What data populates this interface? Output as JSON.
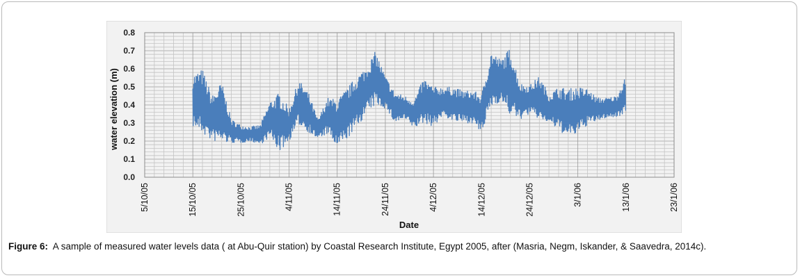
{
  "figure": {
    "label": "Figure 6:",
    "caption": "A sample of measured water levels data ( at Abu-Quir station) by Coastal Research Institute, Egypt 2005, after (Masria, Negm, Iskander, & Saavedra, 2014c)."
  },
  "chart_data": {
    "type": "line",
    "title": "",
    "xlabel": "Date",
    "ylabel": "water elevation (m)",
    "ylim": [
      0,
      0.8
    ],
    "y_ticks": [
      "0.0",
      "0.1",
      "0.2",
      "0.3",
      "0.4",
      "0.5",
      "0.6",
      "0.7",
      "0.8"
    ],
    "x_range": [
      "2005-10-05",
      "2006-01-23"
    ],
    "x_ticks": [
      "5/10/05",
      "15/10/05",
      "25/10/05",
      "4/11/05",
      "14/11/05",
      "24/11/05",
      "4/12/05",
      "14/12/05",
      "24/12/05",
      "3/1/06",
      "13/1/06",
      "23/1/06"
    ],
    "grid": true,
    "legend": "none",
    "series_color": "#4a7ebb",
    "series": [
      {
        "x": [
          "2005-10-15",
          "2005-10-17",
          "2005-10-19",
          "2005-10-21",
          "2005-10-23",
          "2005-10-25",
          "2005-10-27",
          "2005-10-29",
          "2005-10-31",
          "2005-11-02",
          "2005-11-04",
          "2005-11-06",
          "2005-11-08",
          "2005-11-10",
          "2005-11-12",
          "2005-11-14",
          "2005-11-16",
          "2005-11-18",
          "2005-11-20",
          "2005-11-22",
          "2005-11-24",
          "2005-11-26",
          "2005-11-28",
          "2005-11-30",
          "2005-12-02",
          "2005-12-04",
          "2005-12-06",
          "2005-12-08",
          "2005-12-10",
          "2005-12-12",
          "2005-12-14",
          "2005-12-16",
          "2005-12-18",
          "2005-12-20",
          "2005-12-22",
          "2005-12-24",
          "2005-12-26",
          "2005-12-28",
          "2005-12-30",
          "2006-01-01",
          "2006-01-03",
          "2006-01-05",
          "2006-01-07",
          "2006-01-09",
          "2006-01-11",
          "2006-01-13"
        ],
        "low": [
          0.28,
          0.24,
          0.2,
          0.19,
          0.19,
          0.19,
          0.2,
          0.18,
          0.22,
          0.14,
          0.2,
          0.29,
          0.25,
          0.21,
          0.24,
          0.16,
          0.21,
          0.27,
          0.35,
          0.4,
          0.38,
          0.3,
          0.32,
          0.27,
          0.3,
          0.28,
          0.34,
          0.31,
          0.3,
          0.3,
          0.24,
          0.39,
          0.42,
          0.34,
          0.32,
          0.35,
          0.32,
          0.3,
          0.26,
          0.22,
          0.24,
          0.29,
          0.31,
          0.33,
          0.33,
          0.36
        ],
        "high": [
          0.57,
          0.6,
          0.45,
          0.53,
          0.32,
          0.29,
          0.28,
          0.29,
          0.42,
          0.47,
          0.38,
          0.54,
          0.47,
          0.32,
          0.44,
          0.43,
          0.49,
          0.56,
          0.61,
          0.7,
          0.56,
          0.47,
          0.45,
          0.43,
          0.55,
          0.5,
          0.5,
          0.5,
          0.48,
          0.48,
          0.46,
          0.7,
          0.65,
          0.72,
          0.52,
          0.51,
          0.56,
          0.46,
          0.5,
          0.49,
          0.5,
          0.49,
          0.44,
          0.44,
          0.45,
          0.56
        ]
      }
    ]
  }
}
